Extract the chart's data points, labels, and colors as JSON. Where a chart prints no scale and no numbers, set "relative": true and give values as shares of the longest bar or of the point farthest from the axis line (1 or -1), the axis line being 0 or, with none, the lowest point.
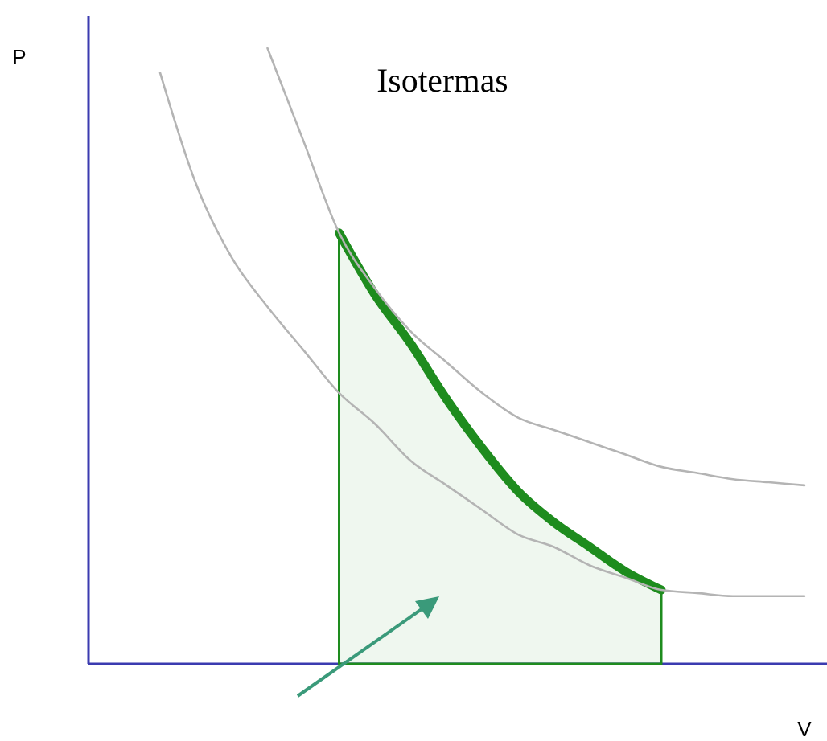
{
  "chart_data": {
    "type": "line",
    "relative": true,
    "xlabel": "V",
    "ylabel": "P",
    "annotations": [
      "Isotermas"
    ],
    "line_style": "solid",
    "categories": [
      null,
      null,
      null,
      null,
      null,
      null,
      null,
      null,
      null,
      null,
      null,
      null,
      null,
      null,
      null,
      null,
      null,
      null,
      null,
      null,
      null
    ],
    "series": [
      {
        "color": "#b4b4b4",
        "values": [
          null,
          null,
          null,
          null,
          null,
          1.0,
          0.85,
          0.7,
          0.61,
          0.54,
          0.49,
          0.44,
          0.4,
          0.38,
          0.36,
          0.34,
          0.32,
          0.31,
          0.3,
          0.295,
          0.29
        ]
      },
      {
        "color": "#b4b4b4",
        "values": [
          null,
          null,
          0.96,
          0.78,
          0.66,
          0.58,
          0.51,
          0.44,
          0.39,
          0.33,
          0.29,
          0.25,
          0.21,
          0.19,
          0.16,
          0.14,
          0.12,
          0.115,
          0.11,
          0.11,
          0.11
        ]
      },
      {
        "type": "area",
        "color": "#1e8c1e",
        "values": [
          null,
          null,
          null,
          null,
          null,
          null,
          null,
          0.7,
          0.6,
          0.52,
          0.43,
          0.35,
          0.28,
          0.23,
          0.19,
          0.15,
          0.12,
          null,
          null,
          null,
          null
        ]
      }
    ]
  }
}
